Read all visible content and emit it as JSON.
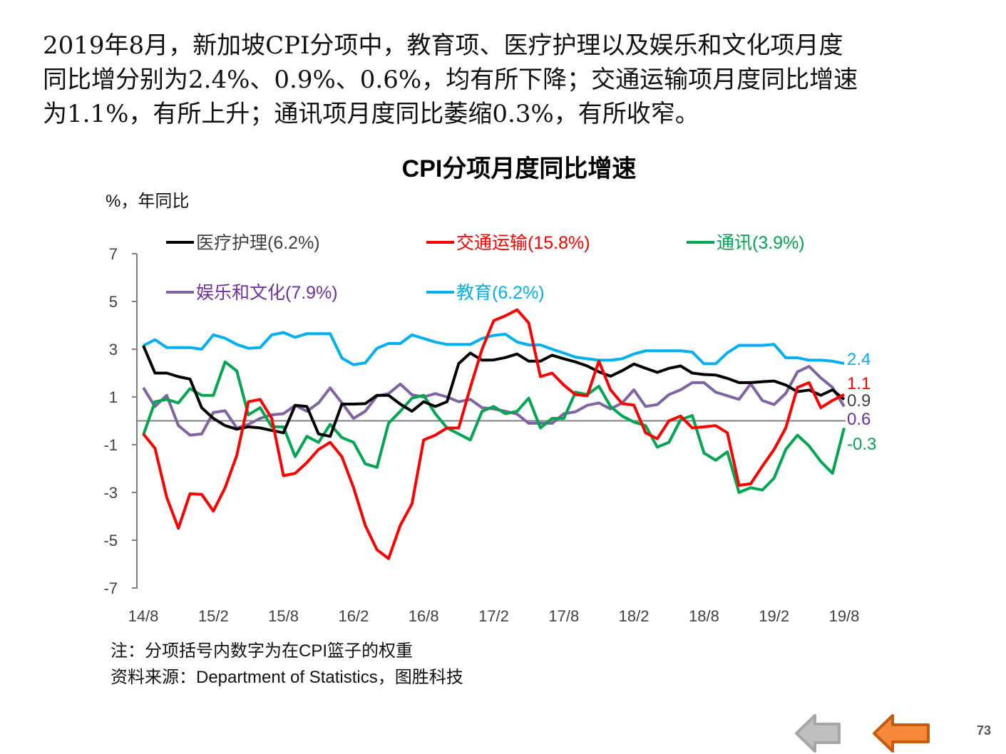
{
  "intro_lines": [
    "2019年8月，新加坡CPI分项中，教育项、医疗护理以及娱乐和文化项月度",
    "同比增分别为2.4%、0.9%、0.6%，均有所下降；交通运输项月度同比增速",
    "为1.1%，有所上升；通讯项月度同比萎缩0.3%，有所收窄。"
  ],
  "chart_data": {
    "type": "line",
    "title": "CPI分项月度同比增速",
    "ylabel": "%，年同比",
    "xlabel": "",
    "ylim": [
      -7,
      7
    ],
    "yticks": [
      7,
      5,
      3,
      1,
      -1,
      -3,
      -5,
      -7
    ],
    "xtick_labels": [
      "14/8",
      "15/2",
      "15/8",
      "16/2",
      "16/8",
      "17/2",
      "17/8",
      "18/2",
      "18/8",
      "19/2",
      "19/8"
    ],
    "x_start": "2014-08",
    "x_end": "2019-08",
    "reference_line": 0,
    "legend_placement": "top",
    "series": [
      {
        "name": "医疗护理(6.2%)",
        "color": "#000000",
        "end_label": "0.9",
        "label_color": "#404040",
        "values": [
          3.15,
          2.0,
          2.0,
          1.85,
          1.75,
          0.55,
          0.1,
          -0.2,
          -0.35,
          -0.25,
          -0.3,
          -0.4,
          -0.5,
          0.65,
          0.6,
          -0.55,
          -0.65,
          0.7,
          0.7,
          0.72,
          1.07,
          1.07,
          0.7,
          0.4,
          0.8,
          0.6,
          0.8,
          2.4,
          2.84,
          2.54,
          2.55,
          2.65,
          2.8,
          2.5,
          2.5,
          2.75,
          2.6,
          2.47,
          2.3,
          2.05,
          1.87,
          2.1,
          2.38,
          2.2,
          2.03,
          2.2,
          2.3,
          2.0,
          1.94,
          1.92,
          1.78,
          1.6,
          1.6,
          1.64,
          1.67,
          1.5,
          1.22,
          1.29,
          1.07,
          1.3,
          0.9
        ]
      },
      {
        "name": "交通运输(15.8%)",
        "color": "#FF0000",
        "end_label": "1.1",
        "label_color": "#FF0000",
        "values": [
          -0.55,
          -1.15,
          -3.2,
          -4.5,
          -3.05,
          -3.08,
          -3.78,
          -2.8,
          -1.45,
          0.8,
          0.9,
          0.1,
          -2.3,
          -2.2,
          -1.75,
          -1.2,
          -0.9,
          -1.5,
          -2.8,
          -4.38,
          -5.4,
          -5.77,
          -4.38,
          -3.48,
          -0.8,
          -0.6,
          -0.3,
          -0.3,
          1.4,
          3.0,
          4.2,
          4.4,
          4.65,
          4.1,
          1.85,
          2.0,
          1.5,
          1.1,
          1.05,
          2.5,
          1.3,
          0.72,
          0.66,
          -0.5,
          -0.75,
          0.0,
          0.2,
          -0.3,
          -0.25,
          -0.2,
          -0.5,
          -2.7,
          -2.64,
          -1.9,
          -1.2,
          -0.3,
          1.4,
          1.6,
          0.55,
          0.85,
          1.1
        ]
      },
      {
        "name": "通讯(3.9%)",
        "color": "#00A650",
        "end_label": "-0.3",
        "label_color": "#00A650",
        "values": [
          -0.6,
          0.8,
          0.9,
          0.75,
          1.35,
          1.07,
          1.07,
          2.47,
          2.09,
          0.25,
          0.55,
          -0.25,
          -0.25,
          -1.5,
          -0.65,
          -0.9,
          -0.15,
          -0.7,
          -0.9,
          -1.8,
          -1.95,
          -0.1,
          0.4,
          0.95,
          1.07,
          0.3,
          -0.3,
          -0.55,
          -0.8,
          0.4,
          0.6,
          0.3,
          0.4,
          0.95,
          -0.3,
          0.1,
          0.1,
          1.2,
          1.1,
          1.45,
          0.6,
          0.2,
          -0.05,
          -0.2,
          -1.1,
          -0.9,
          0.05,
          0.22,
          -1.35,
          -1.65,
          -1.3,
          -3.0,
          -2.8,
          -2.9,
          -2.4,
          -1.2,
          -0.6,
          -1.05,
          -1.7,
          -2.2,
          -0.3
        ]
      },
      {
        "name": "娱乐和文化(7.9%)",
        "color": "#8064A2",
        "end_label": "0.6",
        "label_color": "#7030A0",
        "values": [
          1.39,
          0.6,
          1.07,
          -0.2,
          -0.6,
          -0.55,
          0.35,
          0.42,
          -0.3,
          -0.15,
          0.1,
          0.25,
          0.3,
          0.65,
          0.4,
          0.75,
          1.38,
          0.75,
          0.1,
          0.4,
          1.04,
          1.14,
          1.54,
          1.09,
          1.0,
          1.14,
          1.0,
          0.8,
          0.9,
          0.55,
          0.5,
          0.4,
          0.28,
          -0.1,
          -0.1,
          -0.1,
          0.3,
          0.38,
          0.65,
          0.75,
          0.5,
          0.75,
          1.3,
          0.6,
          0.68,
          1.1,
          1.3,
          1.6,
          1.6,
          1.2,
          1.05,
          0.9,
          1.55,
          0.85,
          0.68,
          1.15,
          2.05,
          2.28,
          1.8,
          1.4,
          0.6
        ]
      },
      {
        "name": "教育(6.2%)",
        "color": "#00B0F0",
        "end_label": "2.4",
        "label_color": "#00B0F0",
        "values": [
          3.15,
          3.4,
          3.07,
          3.07,
          3.07,
          3.0,
          3.6,
          3.46,
          3.2,
          3.04,
          3.07,
          3.6,
          3.7,
          3.5,
          3.65,
          3.65,
          3.65,
          2.63,
          2.35,
          2.43,
          3.04,
          3.24,
          3.24,
          3.6,
          3.45,
          3.3,
          3.2,
          3.2,
          3.2,
          3.45,
          3.58,
          3.63,
          3.3,
          3.18,
          3.18,
          3.0,
          2.84,
          2.67,
          2.6,
          2.54,
          2.54,
          2.6,
          2.8,
          2.93,
          2.93,
          2.93,
          2.93,
          2.88,
          2.39,
          2.39,
          2.85,
          3.16,
          3.16,
          3.16,
          3.2,
          2.64,
          2.64,
          2.54,
          2.54,
          2.5,
          2.4
        ]
      }
    ]
  },
  "notes": {
    "note": "注：分项括号内数字为在CPI篮子的权重",
    "source": "资料来源：Department of Statistics，图胜科技"
  },
  "nav": {
    "page_number": "73",
    "prev_gray_icon": "left-arrow-gray",
    "prev_orange_icon": "left-arrow-orange"
  }
}
